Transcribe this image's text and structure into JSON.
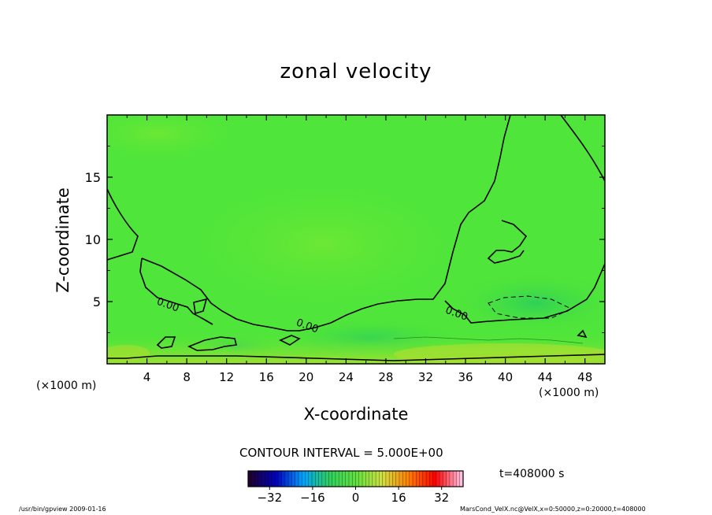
{
  "chart_data": {
    "type": "heatmap",
    "title": "zonal velocity",
    "xlabel": "X-coordinate",
    "ylabel": "Z-coordinate",
    "x_unit_left": "(×1000 m)",
    "x_unit_right": "(×1000 m)",
    "xlim": [
      0,
      50
    ],
    "ylim": [
      0,
      20
    ],
    "x_ticks": [
      4,
      8,
      12,
      16,
      20,
      24,
      28,
      32,
      36,
      40,
      44,
      48
    ],
    "y_ticks": [
      5,
      10,
      15
    ],
    "grid": false,
    "contour_interval_text": "CONTOUR INTERVAL = 5.000E+00",
    "contour_labels": [
      {
        "text": "0.00",
        "x": 6,
        "z": 4.5
      },
      {
        "text": "0.00",
        "x": 20,
        "z": 2.8
      },
      {
        "text": "0.00",
        "x": 35,
        "z": 3.8
      }
    ],
    "colorbar": {
      "min": -40,
      "max": 40,
      "ticks": [
        -32,
        -16,
        0,
        16,
        32
      ],
      "colors": [
        "#200030",
        "#0000c0",
        "#00a0ff",
        "#30d060",
        "#60e040",
        "#d0e040",
        "#ff8000",
        "#ff0000",
        "#ffc0e0"
      ]
    },
    "field_value_range": [
      -10,
      10
    ],
    "time_text": "t=408000 s"
  },
  "footer": {
    "left": "/usr/bin/gpview  2009-01-16",
    "right": "MarsCond_VelX.nc@VelX,x=0:50000,z=0:20000,t=408000"
  },
  "colors": {
    "field_base": "#4fe53a",
    "field_dark": "#3fd84a",
    "field_light": "#66e534",
    "field_yellow": "#a8e030"
  }
}
